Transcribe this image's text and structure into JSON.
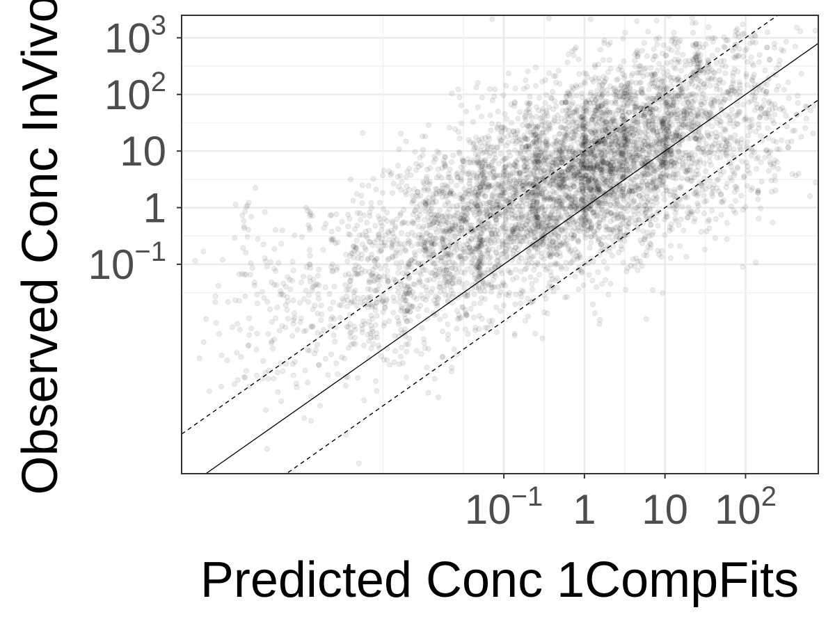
{
  "chart_data": {
    "type": "scatter",
    "xlabel": "Predicted Conc 1CompFits",
    "ylabel": "Observed Conc InVivo",
    "x_scale": "log10",
    "y_scale": "log10",
    "xlim": [
      1e-05,
      800
    ],
    "ylim": [
      2e-05,
      2500
    ],
    "x_ticks": [
      {
        "value": 0.1,
        "base": "10",
        "exp": "−1"
      },
      {
        "value": 1,
        "base": "1",
        "exp": ""
      },
      {
        "value": 10,
        "base": "10",
        "exp": ""
      },
      {
        "value": 100,
        "base": "10",
        "exp": "2"
      }
    ],
    "y_ticks": [
      {
        "value": 1000,
        "base": "10",
        "exp": "3"
      },
      {
        "value": 100,
        "base": "10",
        "exp": "2"
      },
      {
        "value": 10,
        "base": "10",
        "exp": ""
      },
      {
        "value": 1,
        "base": "1",
        "exp": ""
      },
      {
        "value": 0.1,
        "base": "10",
        "exp": "−1"
      }
    ],
    "reference_lines": [
      {
        "style": "solid",
        "fold": 1
      },
      {
        "style": "dashed",
        "fold": 10
      },
      {
        "style": "dashed",
        "fold": 0.1
      }
    ],
    "point_color": "#000000",
    "point_opacity": 0.08,
    "grid": true,
    "colors": {
      "panel_border": "#333333",
      "grid_major": "#ebebeb",
      "grid_minor": "#f2f2f2"
    },
    "points_note": "approximately 5000+ semi-transparent points; density clusters below",
    "clusters": [
      {
        "x_log": -3.8,
        "y_log": -1.9,
        "sx": 0.45,
        "sy": 0.9,
        "n": 180
      },
      {
        "x_log": -2.6,
        "y_log": -1.3,
        "sx": 0.35,
        "sy": 0.8,
        "n": 380
      },
      {
        "x_log": -1.8,
        "y_log": -0.6,
        "sx": 0.3,
        "sy": 0.85,
        "n": 520
      },
      {
        "x_log": -1.2,
        "y_log": -0.1,
        "sx": 0.3,
        "sy": 0.85,
        "n": 650
      },
      {
        "x_log": -0.55,
        "y_log": 0.3,
        "sx": 0.3,
        "sy": 0.85,
        "n": 800
      },
      {
        "x_log": 0.0,
        "y_log": 0.6,
        "sx": 0.3,
        "sy": 0.85,
        "n": 820
      },
      {
        "x_log": 0.45,
        "y_log": 0.9,
        "sx": 0.3,
        "sy": 0.8,
        "n": 720
      },
      {
        "x_log": 0.95,
        "y_log": 1.2,
        "sx": 0.3,
        "sy": 0.8,
        "n": 600
      },
      {
        "x_log": 1.5,
        "y_log": 1.5,
        "sx": 0.35,
        "sy": 0.85,
        "n": 450
      },
      {
        "x_log": 2.1,
        "y_log": 1.6,
        "sx": 0.4,
        "sy": 0.9,
        "n": 260
      }
    ],
    "columns": [
      {
        "x_log": -4.2,
        "y_log": -0.2,
        "len": 1.3,
        "n": 12
      },
      {
        "x_log": -3.4,
        "y_log": -0.7,
        "len": 2.0,
        "n": 18
      },
      {
        "x_log": -2.2,
        "y_log": -1.7,
        "len": 1.5,
        "n": 25
      },
      {
        "x_log": -1.3,
        "y_log": -0.3,
        "len": 2.4,
        "n": 60
      },
      {
        "x_log": -0.6,
        "y_log": 0.4,
        "len": 2.2,
        "n": 70
      },
      {
        "x_log": 0.0,
        "y_log": 0.8,
        "len": 2.2,
        "n": 80
      },
      {
        "x_log": 0.2,
        "y_log": 0.9,
        "len": 1.8,
        "n": 45
      },
      {
        "x_log": 0.5,
        "y_log": 1.4,
        "len": 1.5,
        "n": 50
      },
      {
        "x_log": 1.0,
        "y_log": 1.4,
        "len": 1.5,
        "n": 40
      },
      {
        "x_log": 1.4,
        "y_log": 2.6,
        "len": 0.6,
        "n": 30
      }
    ]
  }
}
